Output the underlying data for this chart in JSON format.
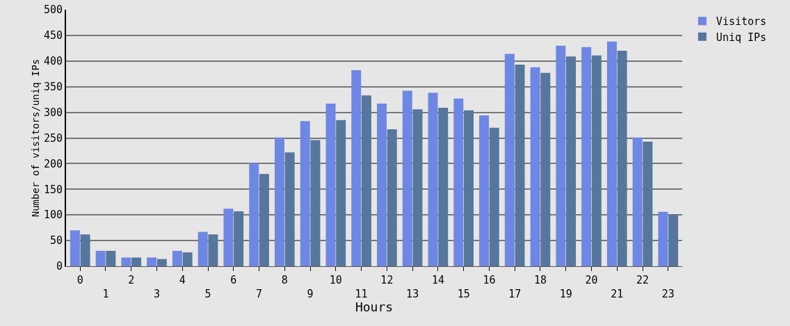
{
  "chart_data": {
    "type": "bar",
    "xlabel": "Hours",
    "ylabel": "Number of visitors/uniq IPs",
    "categories": [
      "0",
      "1",
      "2",
      "3",
      "4",
      "5",
      "6",
      "7",
      "8",
      "9",
      "10",
      "11",
      "12",
      "13",
      "14",
      "15",
      "16",
      "17",
      "18",
      "19",
      "20",
      "21",
      "22",
      "23"
    ],
    "series": [
      {
        "name": "Visitors",
        "color": "#6d87e3",
        "values": [
          70,
          30,
          17,
          17,
          30,
          67,
          112,
          201,
          251,
          283,
          317,
          382,
          317,
          342,
          338,
          327,
          294,
          414,
          388,
          430,
          427,
          438,
          251,
          106
        ]
      },
      {
        "name": "Uniq IPs",
        "color": "#56779b",
        "values": [
          62,
          30,
          17,
          14,
          27,
          62,
          107,
          180,
          222,
          246,
          285,
          333,
          267,
          306,
          309,
          304,
          270,
          393,
          377,
          409,
          411,
          420,
          243,
          100
        ]
      }
    ],
    "ylim": [
      0,
      500
    ],
    "yticks": [
      0,
      50,
      100,
      150,
      200,
      250,
      300,
      350,
      400,
      450,
      500
    ],
    "grid": "y",
    "legend": "top right"
  }
}
